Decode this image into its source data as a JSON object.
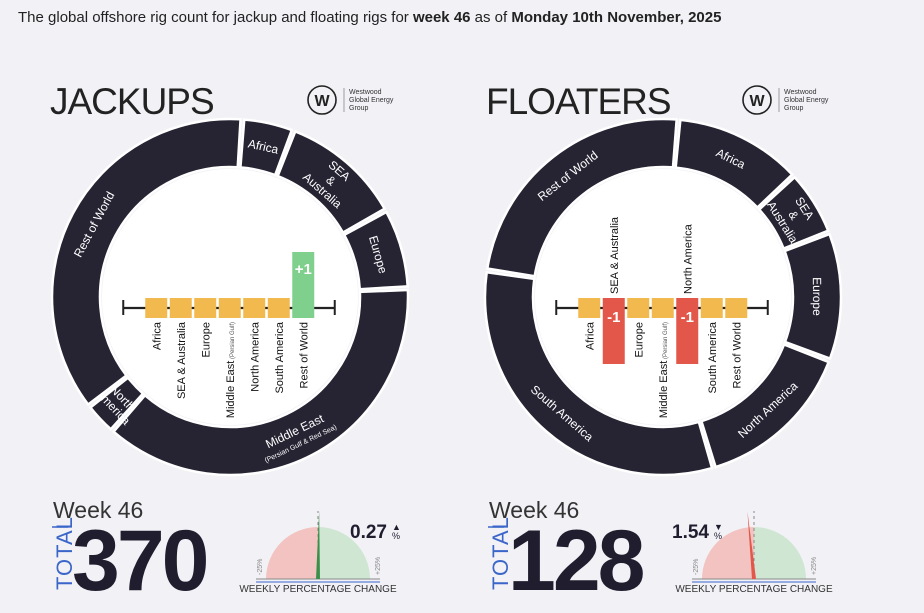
{
  "headline": {
    "prefix": "The global offshore rig count for jackup and floating rigs for ",
    "week": "week 46",
    "middle": " as of ",
    "date": "Monday 10th November, 2025"
  },
  "colors": {
    "ring": "#262433",
    "bar_neutral": "#f2b94e",
    "bar_up": "#7fd08c",
    "bar_down": "#e3564a",
    "gauge_neg": "#f2c3c1",
    "gauge_pos": "#cfe6d2",
    "total_label": "#3b66c9"
  },
  "brand": {
    "monogram": "W",
    "lines": [
      "Westwood",
      "Global Energy",
      "Group"
    ]
  },
  "chart_data": [
    {
      "type": "donut",
      "title": "JACKUPS",
      "segments": [
        {
          "name": "Africa",
          "share": 0.047
        },
        {
          "name": "SEA & Australia",
          "share": 0.111
        },
        {
          "name": "Europe",
          "share": 0.073
        },
        {
          "name": "Middle East",
          "subtitle": "(Persian Gulf & Red Sea)",
          "share": 0.373
        },
        {
          "name": "North America",
          "share": 0.03
        },
        {
          "name": "Rest of World",
          "share": 0.366
        }
      ],
      "bar_chart": {
        "type": "bar",
        "categories": [
          "Africa",
          "SEA & Australia",
          "Europe",
          "Middle East",
          "North America",
          "South America",
          "Rest of World"
        ],
        "category_notes": [
          "",
          "",
          "",
          "(Persian Gulf)",
          "",
          "",
          ""
        ],
        "values": [
          0,
          0,
          0,
          0,
          0,
          0,
          1
        ],
        "labels": [
          "",
          "",
          "",
          "",
          "",
          "",
          "+1"
        ]
      },
      "week_label": "Week 46",
      "total_label": "TOTAL",
      "total": "370",
      "weekly_change_pct": "0.27",
      "change_direction": "up",
      "change_value": 0.27,
      "gauge_range": [
        -25,
        25
      ],
      "gauge_min_label": "-25%",
      "gauge_max_label": "+25%",
      "gauge_caption": "WEEKLY PERCENTAGE CHANGE"
    },
    {
      "type": "donut",
      "title": "FLOATERS",
      "segments": [
        {
          "name": "Africa",
          "share": 0.117
        },
        {
          "name": "SEA & Australia",
          "share": 0.06
        },
        {
          "name": "Europe",
          "share": 0.117
        },
        {
          "name": "North America",
          "share": 0.146
        },
        {
          "name": "South America",
          "share": 0.32
        },
        {
          "name": "Rest of World",
          "share": 0.24
        }
      ],
      "bar_chart": {
        "type": "bar",
        "categories": [
          "Africa",
          "SEA & Australia",
          "Europe",
          "Middle East",
          "North America",
          "South America",
          "Rest of World"
        ],
        "category_notes": [
          "",
          "",
          "",
          "(Persian Gulf)",
          "",
          "",
          ""
        ],
        "values": [
          0,
          -1,
          0,
          0,
          -1,
          0,
          0
        ],
        "labels": [
          "",
          "-1",
          "",
          "",
          "-1",
          "",
          ""
        ]
      },
      "week_label": "Week 46",
      "total_label": "TOTAL",
      "total": "128",
      "weekly_change_pct": "1.54",
      "change_direction": "down",
      "change_value": -1.54,
      "gauge_range": [
        -25,
        25
      ],
      "gauge_min_label": "-25%",
      "gauge_max_label": "+25%",
      "gauge_caption": "WEEKLY PERCENTAGE CHANGE"
    }
  ]
}
